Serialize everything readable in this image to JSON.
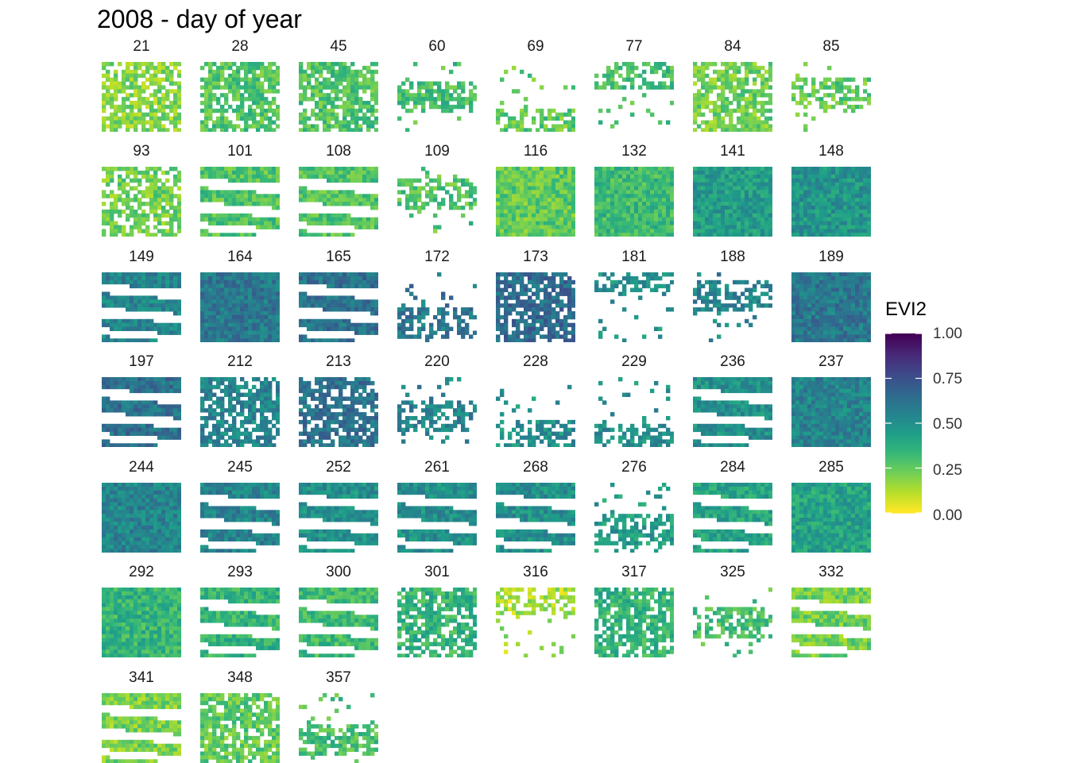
{
  "title": "2008 - day of year",
  "legend": {
    "title": "EVI2",
    "ticks": [
      "1.00",
      "0.75",
      "0.50",
      "0.25",
      "0.00"
    ],
    "range": [
      0,
      1
    ],
    "palette": "viridis (reversed)",
    "colors": [
      "#fde725",
      "#b5de2b",
      "#6ece58",
      "#35b779",
      "#1f9e89",
      "#26828e",
      "#31688e",
      "#3e4989",
      "#482878",
      "#440154"
    ]
  },
  "chart_data": {
    "type": "heatmap",
    "layout": "faceted small multiples of EVI2 raster tiles, 8 columns",
    "facet_variable": "day of year",
    "fill_variable": "EVI2",
    "fill_range": [
      0,
      1
    ],
    "panels": [
      {
        "day": "21",
        "mean_evi2": 0.18,
        "coverage": "partial"
      },
      {
        "day": "28",
        "mean_evi2": 0.28,
        "coverage": "partial"
      },
      {
        "day": "45",
        "mean_evi2": 0.28,
        "coverage": "partial"
      },
      {
        "day": "60",
        "mean_evi2": 0.3,
        "coverage": "sparse"
      },
      {
        "day": "69",
        "mean_evi2": 0.25,
        "coverage": "sparse"
      },
      {
        "day": "77",
        "mean_evi2": 0.3,
        "coverage": "sparse"
      },
      {
        "day": "84",
        "mean_evi2": 0.22,
        "coverage": "partial"
      },
      {
        "day": "85",
        "mean_evi2": 0.25,
        "coverage": "sparse"
      },
      {
        "day": "93",
        "mean_evi2": 0.22,
        "coverage": "partial"
      },
      {
        "day": "101",
        "mean_evi2": 0.28,
        "coverage": "striped"
      },
      {
        "day": "108",
        "mean_evi2": 0.28,
        "coverage": "striped"
      },
      {
        "day": "109",
        "mean_evi2": 0.28,
        "coverage": "sparse"
      },
      {
        "day": "116",
        "mean_evi2": 0.25,
        "coverage": "full"
      },
      {
        "day": "132",
        "mean_evi2": 0.32,
        "coverage": "full"
      },
      {
        "day": "141",
        "mean_evi2": 0.45,
        "coverage": "full"
      },
      {
        "day": "148",
        "mean_evi2": 0.48,
        "coverage": "full"
      },
      {
        "day": "149",
        "mean_evi2": 0.55,
        "coverage": "striped"
      },
      {
        "day": "164",
        "mean_evi2": 0.6,
        "coverage": "full"
      },
      {
        "day": "165",
        "mean_evi2": 0.62,
        "coverage": "striped"
      },
      {
        "day": "172",
        "mean_evi2": 0.6,
        "coverage": "sparse"
      },
      {
        "day": "173",
        "mean_evi2": 0.65,
        "coverage": "partial"
      },
      {
        "day": "181",
        "mean_evi2": 0.5,
        "coverage": "sparse"
      },
      {
        "day": "188",
        "mean_evi2": 0.55,
        "coverage": "sparse"
      },
      {
        "day": "189",
        "mean_evi2": 0.6,
        "coverage": "full"
      },
      {
        "day": "197",
        "mean_evi2": 0.62,
        "coverage": "striped"
      },
      {
        "day": "212",
        "mean_evi2": 0.55,
        "coverage": "partial"
      },
      {
        "day": "213",
        "mean_evi2": 0.62,
        "coverage": "partial"
      },
      {
        "day": "220",
        "mean_evi2": 0.55,
        "coverage": "sparse"
      },
      {
        "day": "228",
        "mean_evi2": 0.5,
        "coverage": "sparse"
      },
      {
        "day": "229",
        "mean_evi2": 0.5,
        "coverage": "sparse"
      },
      {
        "day": "236",
        "mean_evi2": 0.5,
        "coverage": "striped"
      },
      {
        "day": "237",
        "mean_evi2": 0.55,
        "coverage": "full"
      },
      {
        "day": "244",
        "mean_evi2": 0.55,
        "coverage": "full"
      },
      {
        "day": "245",
        "mean_evi2": 0.55,
        "coverage": "striped"
      },
      {
        "day": "252",
        "mean_evi2": 0.5,
        "coverage": "striped"
      },
      {
        "day": "261",
        "mean_evi2": 0.5,
        "coverage": "striped"
      },
      {
        "day": "268",
        "mean_evi2": 0.5,
        "coverage": "striped"
      },
      {
        "day": "276",
        "mean_evi2": 0.45,
        "coverage": "sparse"
      },
      {
        "day": "284",
        "mean_evi2": 0.42,
        "coverage": "striped"
      },
      {
        "day": "285",
        "mean_evi2": 0.42,
        "coverage": "full"
      },
      {
        "day": "292",
        "mean_evi2": 0.35,
        "coverage": "full"
      },
      {
        "day": "293",
        "mean_evi2": 0.35,
        "coverage": "striped"
      },
      {
        "day": "300",
        "mean_evi2": 0.32,
        "coverage": "striped"
      },
      {
        "day": "301",
        "mean_evi2": 0.35,
        "coverage": "partial"
      },
      {
        "day": "316",
        "mean_evi2": 0.12,
        "coverage": "sparse"
      },
      {
        "day": "317",
        "mean_evi2": 0.35,
        "coverage": "partial"
      },
      {
        "day": "325",
        "mean_evi2": 0.3,
        "coverage": "sparse"
      },
      {
        "day": "332",
        "mean_evi2": 0.22,
        "coverage": "striped"
      },
      {
        "day": "341",
        "mean_evi2": 0.2,
        "coverage": "striped"
      },
      {
        "day": "348",
        "mean_evi2": 0.25,
        "coverage": "partial"
      },
      {
        "day": "357",
        "mean_evi2": 0.3,
        "coverage": "sparse"
      }
    ]
  }
}
